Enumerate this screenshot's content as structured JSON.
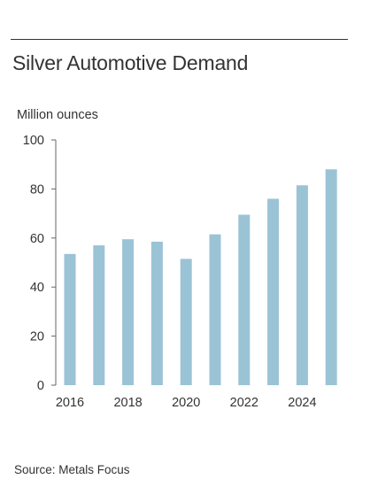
{
  "title": "Silver Automotive Demand",
  "unit_label": "Million ounces",
  "source": "Source: Metals Focus",
  "colors": {
    "bar": "#9bc3d6",
    "axis": "#666666"
  },
  "chart_data": {
    "type": "bar",
    "title": "Silver Automotive Demand",
    "ylabel": "Million ounces",
    "xlabel": "",
    "categories": [
      "2016",
      "2017",
      "2018",
      "2019",
      "2020",
      "2021",
      "2022",
      "2023",
      "2024",
      "2025"
    ],
    "values": [
      53.5,
      57,
      59.5,
      58.5,
      51.5,
      61.5,
      69.5,
      76,
      81.5,
      88
    ],
    "x_tick_labels": [
      "2016",
      "2018",
      "2020",
      "2022",
      "2024"
    ],
    "y_ticks": [
      0,
      20,
      40,
      60,
      80,
      100
    ],
    "ylim": [
      0,
      100
    ],
    "grid": false,
    "legend": "none"
  }
}
